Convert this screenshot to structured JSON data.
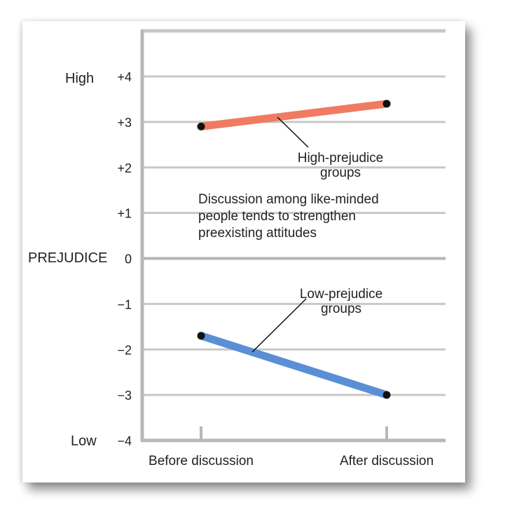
{
  "chart_data": {
    "type": "line",
    "categories": [
      "Before discussion",
      "After discussion"
    ],
    "ylim": [
      -4,
      4
    ],
    "y_ticks": [
      "−4",
      "−3",
      "−2",
      "−1",
      "0",
      "+1",
      "+2",
      "+3",
      "+4"
    ],
    "ylabel": "PREJUDICE",
    "y_high_label": "High",
    "y_low_label": "Low",
    "grid": true,
    "series": [
      {
        "name": "High-prejudice groups",
        "values": [
          2.9,
          3.4
        ],
        "color": "#f07b62"
      },
      {
        "name": "Low-prejudice groups",
        "values": [
          -1.7,
          -3.0
        ],
        "color": "#5a8fd6"
      }
    ],
    "annotations": {
      "high_group_line1": "High-prejudice",
      "high_group_line2": "groups",
      "low_group_line1": "Low-prejudice",
      "low_group_line2": "groups",
      "note_line1": "Discussion among like-minded",
      "note_line2": "people tends to strengthen",
      "note_line3": "preexisting attitudes"
    }
  }
}
